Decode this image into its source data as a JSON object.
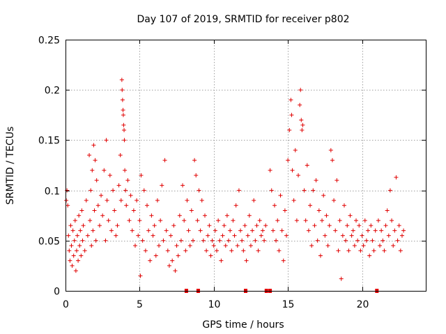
{
  "chart_data": {
    "type": "scatter",
    "title": "Day 107 of 2019, SRMTID for receiver p802",
    "xlabel": "GPS time / hours",
    "ylabel": "SRMTID / TECUs",
    "xlim": [
      0,
      24.3
    ],
    "ylim": [
      0,
      0.25
    ],
    "xticks": [
      0,
      5,
      10,
      15,
      20
    ],
    "xtick_labels": [
      "0",
      "5",
      "10",
      "15",
      "20"
    ],
    "yticks": [
      0,
      0.05,
      0.1,
      0.15,
      0.2,
      0.25
    ],
    "ytick_labels": [
      "0",
      "0.05",
      "0.1",
      "0.15",
      "0.2",
      "0.25"
    ],
    "grid": true,
    "marker": "plus",
    "marker_color": "#e00000",
    "series": [
      {
        "name": "SRMTID",
        "points": [
          [
            0.05,
            0.09
          ],
          [
            0.1,
            0.1
          ],
          [
            0.15,
            0.085
          ],
          [
            0.2,
            0.055
          ],
          [
            0.25,
            0.04
          ],
          [
            0.3,
            0.03
          ],
          [
            0.35,
            0.065
          ],
          [
            0.4,
            0.045
          ],
          [
            0.45,
            0.025
          ],
          [
            0.5,
            0.06
          ],
          [
            0.55,
            0.035
          ],
          [
            0.6,
            0.05
          ],
          [
            0.65,
            0.07
          ],
          [
            0.7,
            0.02
          ],
          [
            0.75,
            0.04
          ],
          [
            0.8,
            0.055
          ],
          [
            0.85,
            0.03
          ],
          [
            0.9,
            0.075
          ],
          [
            0.95,
            0.045
          ],
          [
            1.0,
            0.06
          ],
          [
            1.05,
            0.035
          ],
          [
            1.1,
            0.08
          ],
          [
            1.15,
            0.05
          ],
          [
            1.2,
            0.065
          ],
          [
            1.3,
            0.04
          ],
          [
            1.4,
            0.09
          ],
          [
            1.5,
            0.055
          ],
          [
            1.6,
            0.135
          ],
          [
            1.65,
            0.07
          ],
          [
            1.7,
            0.1
          ],
          [
            1.75,
            0.045
          ],
          [
            1.8,
            0.12
          ],
          [
            1.85,
            0.06
          ],
          [
            1.9,
            0.145
          ],
          [
            1.95,
            0.08
          ],
          [
            2.0,
            0.13
          ],
          [
            2.05,
            0.05
          ],
          [
            2.1,
            0.11
          ],
          [
            2.2,
            0.085
          ],
          [
            2.3,
            0.065
          ],
          [
            2.4,
            0.095
          ],
          [
            2.5,
            0.075
          ],
          [
            2.6,
            0.12
          ],
          [
            2.7,
            0.05
          ],
          [
            2.75,
            0.15
          ],
          [
            2.8,
            0.09
          ],
          [
            2.9,
            0.07
          ],
          [
            3.0,
            0.115
          ],
          [
            3.1,
            0.06
          ],
          [
            3.2,
            0.1
          ],
          [
            3.3,
            0.08
          ],
          [
            3.4,
            0.055
          ],
          [
            3.5,
            0.065
          ],
          [
            3.6,
            0.105
          ],
          [
            3.7,
            0.135
          ],
          [
            3.75,
            0.09
          ],
          [
            3.8,
            0.21
          ],
          [
            3.82,
            0.2
          ],
          [
            3.85,
            0.19
          ],
          [
            3.88,
            0.18
          ],
          [
            3.9,
            0.175
          ],
          [
            3.92,
            0.165
          ],
          [
            3.95,
            0.16
          ],
          [
            3.97,
            0.15
          ],
          [
            4.0,
            0.12
          ],
          [
            4.05,
            0.1
          ],
          [
            4.1,
            0.085
          ],
          [
            4.2,
            0.11
          ],
          [
            4.3,
            0.07
          ],
          [
            4.4,
            0.095
          ],
          [
            4.5,
            0.06
          ],
          [
            4.6,
            0.08
          ],
          [
            4.7,
            0.045
          ],
          [
            4.8,
            0.09
          ],
          [
            4.9,
            0.055
          ],
          [
            5.0,
            0.07
          ],
          [
            5.05,
            0.015
          ],
          [
            5.1,
            0.115
          ],
          [
            5.2,
            0.05
          ],
          [
            5.3,
            0.1
          ],
          [
            5.4,
            0.04
          ],
          [
            5.5,
            0.085
          ],
          [
            5.6,
            0.06
          ],
          [
            5.7,
            0.03
          ],
          [
            5.8,
            0.075
          ],
          [
            5.9,
            0.055
          ],
          [
            6.0,
            0.065
          ],
          [
            6.1,
            0.035
          ],
          [
            6.2,
            0.09
          ],
          [
            6.3,
            0.045
          ],
          [
            6.4,
            0.07
          ],
          [
            6.5,
            0.105
          ],
          [
            6.6,
            0.05
          ],
          [
            6.7,
            0.13
          ],
          [
            6.8,
            0.06
          ],
          [
            6.9,
            0.04
          ],
          [
            7.0,
            0.025
          ],
          [
            7.1,
            0.055
          ],
          [
            7.2,
            0.03
          ],
          [
            7.3,
            0.065
          ],
          [
            7.4,
            0.02
          ],
          [
            7.5,
            0.045
          ],
          [
            7.6,
            0.035
          ],
          [
            7.7,
            0.075
          ],
          [
            7.8,
            0.05
          ],
          [
            7.9,
            0.105
          ],
          [
            8.0,
            0.07
          ],
          [
            8.1,
            0.04
          ],
          [
            8.2,
            0.09
          ],
          [
            8.3,
            0.06
          ],
          [
            8.4,
            0.045
          ],
          [
            8.5,
            0.08
          ],
          [
            8.6,
            0.05
          ],
          [
            8.7,
            0.13
          ],
          [
            8.8,
            0.115
          ],
          [
            8.9,
            0.07
          ],
          [
            9.0,
            0.1
          ],
          [
            9.1,
            0.06
          ],
          [
            9.2,
            0.09
          ],
          [
            9.3,
            0.05
          ],
          [
            9.4,
            0.075
          ],
          [
            9.5,
            0.04
          ],
          [
            9.6,
            0.055
          ],
          [
            9.7,
            0.065
          ],
          [
            9.8,
            0.035
          ],
          [
            9.9,
            0.05
          ],
          [
            10.0,
            0.045
          ],
          [
            10.1,
            0.06
          ],
          [
            10.2,
            0.04
          ],
          [
            10.3,
            0.07
          ],
          [
            10.4,
            0.05
          ],
          [
            10.5,
            0.03
          ],
          [
            10.6,
            0.055
          ],
          [
            10.7,
            0.065
          ],
          [
            10.8,
            0.045
          ],
          [
            10.9,
            0.075
          ],
          [
            11.0,
            0.05
          ],
          [
            11.1,
            0.06
          ],
          [
            11.2,
            0.04
          ],
          [
            11.3,
            0.07
          ],
          [
            11.4,
            0.055
          ],
          [
            11.5,
            0.085
          ],
          [
            11.6,
            0.045
          ],
          [
            11.7,
            0.1
          ],
          [
            11.8,
            0.06
          ],
          [
            11.9,
            0.05
          ],
          [
            12.0,
            0.04
          ],
          [
            12.1,
            0.065
          ],
          [
            12.2,
            0.03
          ],
          [
            12.3,
            0.055
          ],
          [
            12.4,
            0.075
          ],
          [
            12.5,
            0.045
          ],
          [
            12.6,
            0.06
          ],
          [
            12.7,
            0.09
          ],
          [
            12.8,
            0.05
          ],
          [
            12.9,
            0.065
          ],
          [
            13.0,
            0.04
          ],
          [
            13.1,
            0.07
          ],
          [
            13.2,
            0.055
          ],
          [
            13.3,
            0.06
          ],
          [
            13.4,
            0.05
          ],
          [
            13.5,
            0.065
          ],
          [
            13.8,
            0.12
          ],
          [
            13.9,
            0.1
          ],
          [
            14.0,
            0.06
          ],
          [
            14.1,
            0.085
          ],
          [
            14.2,
            0.05
          ],
          [
            14.3,
            0.07
          ],
          [
            14.4,
            0.04
          ],
          [
            14.5,
            0.095
          ],
          [
            14.6,
            0.06
          ],
          [
            14.7,
            0.03
          ],
          [
            14.8,
            0.08
          ],
          [
            14.9,
            0.055
          ],
          [
            15.0,
            0.13
          ],
          [
            15.1,
            0.16
          ],
          [
            15.2,
            0.19
          ],
          [
            15.25,
            0.175
          ],
          [
            15.3,
            0.12
          ],
          [
            15.4,
            0.09
          ],
          [
            15.5,
            0.14
          ],
          [
            15.6,
            0.07
          ],
          [
            15.7,
            0.115
          ],
          [
            15.8,
            0.185
          ],
          [
            15.85,
            0.2
          ],
          [
            15.9,
            0.17
          ],
          [
            15.95,
            0.16
          ],
          [
            16.0,
            0.165
          ],
          [
            16.1,
            0.1
          ],
          [
            16.2,
            0.07
          ],
          [
            16.3,
            0.125
          ],
          [
            16.4,
            0.06
          ],
          [
            16.5,
            0.085
          ],
          [
            16.6,
            0.045
          ],
          [
            16.7,
            0.1
          ],
          [
            16.8,
            0.065
          ],
          [
            16.9,
            0.11
          ],
          [
            17.0,
            0.05
          ],
          [
            17.1,
            0.08
          ],
          [
            17.2,
            0.035
          ],
          [
            17.3,
            0.07
          ],
          [
            17.4,
            0.095
          ],
          [
            17.5,
            0.055
          ],
          [
            17.6,
            0.075
          ],
          [
            17.7,
            0.045
          ],
          [
            17.8,
            0.065
          ],
          [
            17.9,
            0.14
          ],
          [
            18.0,
            0.13
          ],
          [
            18.1,
            0.09
          ],
          [
            18.2,
            0.06
          ],
          [
            18.3,
            0.11
          ],
          [
            18.4,
            0.04
          ],
          [
            18.5,
            0.07
          ],
          [
            18.6,
            0.012
          ],
          [
            18.7,
            0.055
          ],
          [
            18.8,
            0.085
          ],
          [
            18.9,
            0.05
          ],
          [
            19.0,
            0.065
          ],
          [
            19.1,
            0.04
          ],
          [
            19.2,
            0.075
          ],
          [
            19.3,
            0.055
          ],
          [
            19.4,
            0.06
          ],
          [
            19.5,
            0.045
          ],
          [
            19.6,
            0.07
          ],
          [
            19.7,
            0.05
          ],
          [
            19.8,
            0.065
          ],
          [
            19.9,
            0.04
          ],
          [
            20.0,
            0.055
          ],
          [
            20.1,
            0.045
          ],
          [
            20.2,
            0.07
          ],
          [
            20.3,
            0.05
          ],
          [
            20.4,
            0.06
          ],
          [
            20.5,
            0.035
          ],
          [
            20.6,
            0.065
          ],
          [
            20.7,
            0.05
          ],
          [
            20.8,
            0.04
          ],
          [
            20.9,
            0.06
          ],
          [
            21.1,
            0.07
          ],
          [
            21.2,
            0.045
          ],
          [
            21.3,
            0.06
          ],
          [
            21.4,
            0.05
          ],
          [
            21.5,
            0.04
          ],
          [
            21.6,
            0.065
          ],
          [
            21.7,
            0.08
          ],
          [
            21.8,
            0.055
          ],
          [
            21.9,
            0.1
          ],
          [
            22.0,
            0.07
          ],
          [
            22.1,
            0.045
          ],
          [
            22.2,
            0.06
          ],
          [
            22.3,
            0.113
          ],
          [
            22.4,
            0.05
          ],
          [
            22.5,
            0.065
          ],
          [
            22.6,
            0.04
          ],
          [
            22.7,
            0.055
          ],
          [
            22.8,
            0.06
          ]
        ]
      }
    ],
    "baseline_markers_x": [
      8.15,
      8.95,
      12.15,
      13.55,
      13.8,
      21.0
    ]
  }
}
